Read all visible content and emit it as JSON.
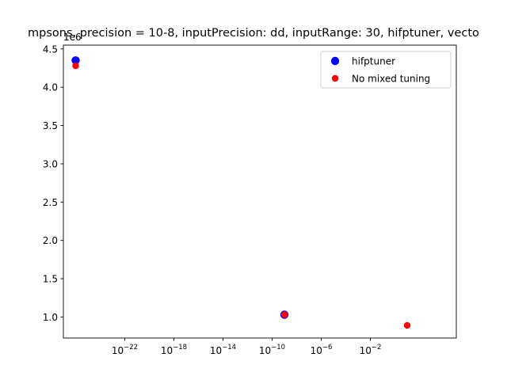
{
  "chart_data": {
    "type": "scatter",
    "title": "mpsons, precision = 10-8, inputPrecision: dd, inputRange: 30, hifptuner, vecto",
    "xlabel": "",
    "ylabel": "",
    "xscale": "log",
    "xlim": [
      1e-27,
      100000.0
    ],
    "ylim": [
      725000.0,
      4550000.0
    ],
    "y_offset_label": "1e6",
    "x_ticks": [
      {
        "value": 1e-22,
        "base": "10",
        "exp": "−22"
      },
      {
        "value": 1e-18,
        "base": "10",
        "exp": "−18"
      },
      {
        "value": 1e-14,
        "base": "10",
        "exp": "−14"
      },
      {
        "value": 1e-10,
        "base": "10",
        "exp": "−10"
      },
      {
        "value": 1e-06,
        "base": "10",
        "exp": "−6"
      },
      {
        "value": 0.01,
        "base": "10",
        "exp": "−2"
      }
    ],
    "y_ticks": [
      {
        "value": 1000000.0,
        "label": "1.0"
      },
      {
        "value": 1500000.0,
        "label": "1.5"
      },
      {
        "value": 2000000.0,
        "label": "2.0"
      },
      {
        "value": 2500000.0,
        "label": "2.5"
      },
      {
        "value": 3000000.0,
        "label": "3.0"
      },
      {
        "value": 3500000.0,
        "label": "3.5"
      },
      {
        "value": 4000000.0,
        "label": "4.0"
      },
      {
        "value": 4500000.0,
        "label": "4.5"
      }
    ],
    "grid": false,
    "legend_position": "top-right",
    "series": [
      {
        "name": "hifptuner",
        "color": "#0000ff",
        "marker_size": "large",
        "points": [
          {
            "x": 1e-26,
            "y": 4350000.0
          },
          {
            "x": 1e-09,
            "y": 1030000.0
          }
        ]
      },
      {
        "name": "No mixed tuning",
        "color": "#ff0000",
        "marker_size": "small",
        "points": [
          {
            "x": 1e-26,
            "y": 4280000.0
          },
          {
            "x": 1e-09,
            "y": 1030000.0
          },
          {
            "x": 10.0,
            "y": 890000.0
          }
        ]
      }
    ]
  }
}
